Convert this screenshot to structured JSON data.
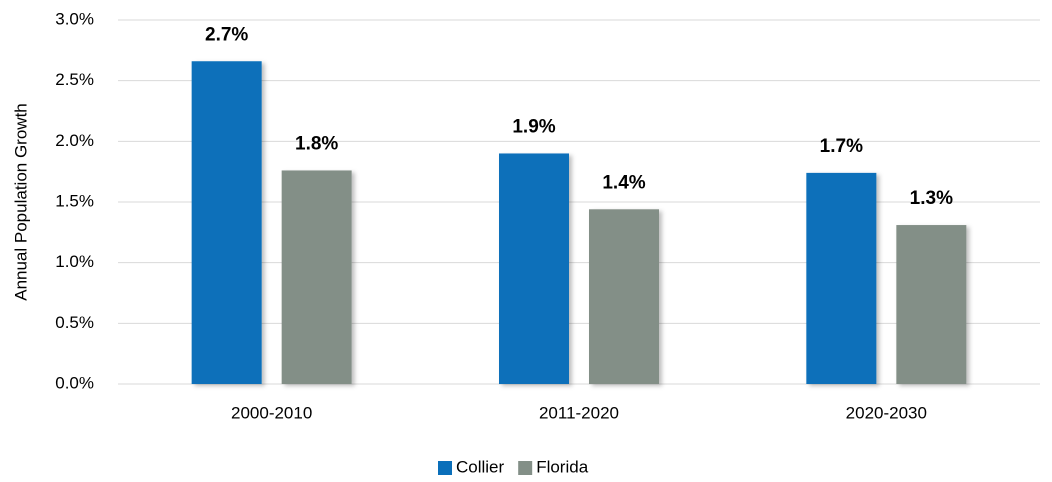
{
  "chart_data": {
    "type": "bar",
    "y_label": "Annual Population Growth",
    "categories": [
      "2000-2010",
      "2011-2020",
      "2020-2030"
    ],
    "series": [
      {
        "name": "Collier",
        "color": "#0a6fba",
        "values": [
          2.66,
          1.9,
          1.74
        ],
        "value_labels": [
          "2.7%",
          "1.9%",
          "1.7%"
        ]
      },
      {
        "name": "Florida",
        "color": "#838f87",
        "values": [
          1.76,
          1.44,
          1.31
        ],
        "value_labels": [
          "1.8%",
          "1.4%",
          "1.3%"
        ]
      }
    ],
    "ylim": [
      0,
      3
    ],
    "yticks": [
      {
        "value": 0,
        "label": "0.0%"
      },
      {
        "value": 0.5,
        "label": "0.5%"
      },
      {
        "value": 1,
        "label": "1.0%"
      },
      {
        "value": 1.5,
        "label": "1.5%"
      },
      {
        "value": 2,
        "label": "2.0%"
      },
      {
        "value": 2.5,
        "label": "2.5%"
      },
      {
        "value": 3,
        "label": "3.0%"
      }
    ],
    "grid": true,
    "legend": "bottom"
  }
}
